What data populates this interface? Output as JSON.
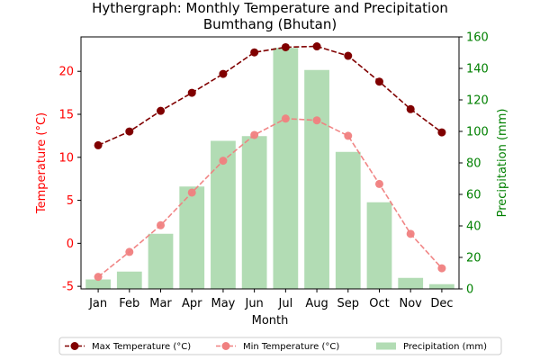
{
  "chart_data": {
    "type": "bar",
    "title": "Hythergraph: Monthly Temperature and Precipitation",
    "subtitle": "Bumthang (Bhutan)",
    "xlabel": "Month",
    "ylabel_left": "Temperature (°C)",
    "ylabel_right": "Precipitation (mm)",
    "categories": [
      "Jan",
      "Feb",
      "Mar",
      "Apr",
      "May",
      "Jun",
      "Jul",
      "Aug",
      "Sep",
      "Oct",
      "Nov",
      "Dec"
    ],
    "ylim_left": [
      -5.3,
      24.0
    ],
    "yticks_left": [
      -5,
      0,
      5,
      10,
      15,
      20
    ],
    "ylim_right": [
      0,
      160
    ],
    "yticks_right": [
      0,
      20,
      40,
      60,
      80,
      100,
      120,
      140,
      160
    ],
    "grid": false,
    "legend_placement": "bottom-center",
    "series": [
      {
        "name": "Max Temperature (°C)",
        "kind": "line",
        "axis": "left",
        "color": "#800000",
        "linestyle": "dashed",
        "values": [
          11.4,
          13.0,
          15.4,
          17.5,
          19.7,
          22.2,
          22.8,
          22.9,
          21.8,
          18.8,
          15.6,
          12.9
        ]
      },
      {
        "name": "Min Temperature (°C)",
        "kind": "line",
        "axis": "left",
        "color": "#f08080",
        "linestyle": "dashed",
        "values": [
          -3.9,
          -1.0,
          2.1,
          5.9,
          9.6,
          12.6,
          14.5,
          14.3,
          12.5,
          6.9,
          1.1,
          -2.9
        ]
      },
      {
        "name": "Precipitation (mm)",
        "kind": "bar",
        "axis": "right",
        "color": "#4caf50",
        "values": [
          6,
          11,
          35,
          65,
          94,
          97,
          153,
          139,
          87,
          55,
          7,
          3
        ]
      }
    ],
    "colors": {
      "left_axis": "#ff0000",
      "right_axis": "#008000"
    }
  }
}
